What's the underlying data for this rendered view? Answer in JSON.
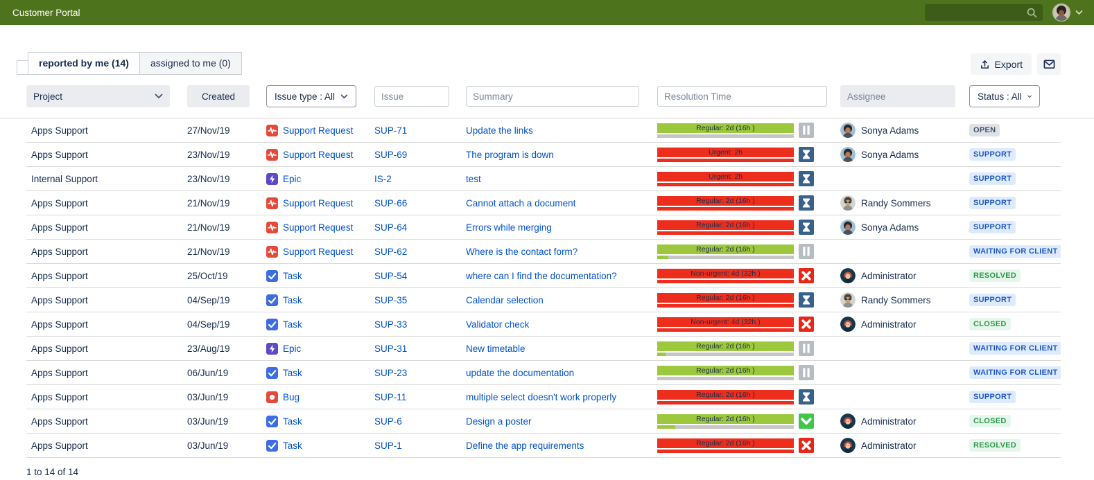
{
  "topbar": {
    "title": "Customer Portal",
    "search_placeholder": ""
  },
  "tabs": [
    {
      "label": "reported by me (14)",
      "active": true
    },
    {
      "label": "assigned to me (0)",
      "active": false
    }
  ],
  "toolbar": {
    "export_label": "Export"
  },
  "filters": {
    "project_label": "Project",
    "created_label": "Created",
    "issue_type_label": "Issue type : All",
    "issue_placeholder": "Issue",
    "summary_placeholder": "Summary",
    "resolution_placeholder": "Resolution Time",
    "assignee_placeholder": "Assignee",
    "status_label": "Status : All"
  },
  "table": {
    "rows": [
      {
        "project": "Apps Support",
        "created": "27/Nov/19",
        "issue_type": "Support Request",
        "type_icon": "support-request",
        "issue_key": "SUP-71",
        "summary": "Update the links",
        "sla": {
          "label": "Regular: 2d (16h )",
          "bar": "green",
          "sub": "gray",
          "green_pct": 0,
          "icon": "pause"
        },
        "assignee": "Sonya Adams",
        "avatar": "sonya",
        "status": "OPEN",
        "status_type": "gray"
      },
      {
        "project": "Apps Support",
        "created": "23/Nov/19",
        "issue_type": "Support Request",
        "type_icon": "support-request",
        "issue_key": "SUP-69",
        "summary": "The program is down",
        "sla": {
          "label": "Urgent: 2h",
          "bar": "red",
          "sub": "red",
          "green_pct": 0,
          "icon": "hourglass"
        },
        "assignee": "Sonya Adams",
        "avatar": "sonya",
        "status": "SUPPORT",
        "status_type": "blue"
      },
      {
        "project": "Internal Support",
        "created": "23/Nov/19",
        "issue_type": "Epic",
        "type_icon": "epic",
        "issue_key": "IS-2",
        "summary": "test",
        "sla": {
          "label": "Urgent: 2h",
          "bar": "red",
          "sub": "red",
          "green_pct": 0,
          "icon": "hourglass"
        },
        "assignee": "",
        "avatar": "",
        "status": "SUPPORT",
        "status_type": "blue"
      },
      {
        "project": "Apps Support",
        "created": "21/Nov/19",
        "issue_type": "Support Request",
        "type_icon": "support-request",
        "issue_key": "SUP-66",
        "summary": "Cannot attach a document",
        "sla": {
          "label": "Regular: 2d (16h )",
          "bar": "red",
          "sub": "red",
          "green_pct": 0,
          "icon": "hourglass"
        },
        "assignee": "Randy Sommers",
        "avatar": "randy",
        "status": "SUPPORT",
        "status_type": "blue"
      },
      {
        "project": "Apps Support",
        "created": "21/Nov/19",
        "issue_type": "Support Request",
        "type_icon": "support-request",
        "issue_key": "SUP-64",
        "summary": "Errors while merging",
        "sla": {
          "label": "Regular: 2d (16h )",
          "bar": "red",
          "sub": "red",
          "green_pct": 0,
          "icon": "hourglass"
        },
        "assignee": "Sonya Adams",
        "avatar": "sonya",
        "status": "SUPPORT",
        "status_type": "blue"
      },
      {
        "project": "Apps Support",
        "created": "21/Nov/19",
        "issue_type": "Support Request",
        "type_icon": "support-request",
        "issue_key": "SUP-62",
        "summary": "Where is the contact form?",
        "sla": {
          "label": "Regular: 2d (16h )",
          "bar": "green",
          "sub": "gray",
          "green_pct": 8,
          "icon": "pause"
        },
        "assignee": "",
        "avatar": "",
        "status": "WAITING FOR CLIENT",
        "status_type": "blue"
      },
      {
        "project": "Apps Support",
        "created": "25/Oct/19",
        "issue_type": "Task",
        "type_icon": "task",
        "issue_key": "SUP-54",
        "summary": "where can I find the documentation?",
        "sla": {
          "label": "Non-urgent: 4d (32h )",
          "bar": "red",
          "sub": "red",
          "green_pct": 0,
          "icon": "x"
        },
        "assignee": "Administrator",
        "avatar": "admin",
        "status": "RESOLVED",
        "status_type": "green"
      },
      {
        "project": "Apps Support",
        "created": "04/Sep/19",
        "issue_type": "Task",
        "type_icon": "task",
        "issue_key": "SUP-35",
        "summary": "Calendar selection",
        "sla": {
          "label": "Regular: 2d (16h )",
          "bar": "red",
          "sub": "red",
          "green_pct": 0,
          "icon": "hourglass"
        },
        "assignee": "Randy Sommers",
        "avatar": "randy",
        "status": "SUPPORT",
        "status_type": "blue"
      },
      {
        "project": "Apps Support",
        "created": "04/Sep/19",
        "issue_type": "Task",
        "type_icon": "task",
        "issue_key": "SUP-33",
        "summary": "Validator check",
        "sla": {
          "label": "Non-urgent: 4d (32h )",
          "bar": "red",
          "sub": "red",
          "green_pct": 0,
          "icon": "x"
        },
        "assignee": "Administrator",
        "avatar": "admin",
        "status": "CLOSED",
        "status_type": "green"
      },
      {
        "project": "Apps Support",
        "created": "23/Aug/19",
        "issue_type": "Epic",
        "type_icon": "epic",
        "issue_key": "SUP-31",
        "summary": "New timetable",
        "sla": {
          "label": "Regular: 2d (16h )",
          "bar": "green",
          "sub": "gray",
          "green_pct": 6,
          "icon": "pause"
        },
        "assignee": "",
        "avatar": "",
        "status": "WAITING FOR CLIENT",
        "status_type": "blue"
      },
      {
        "project": "Apps Support",
        "created": "06/Jun/19",
        "issue_type": "Task",
        "type_icon": "task",
        "issue_key": "SUP-23",
        "summary": "update the documentation",
        "sla": {
          "label": "Regular: 2d (16h )",
          "bar": "green",
          "sub": "gray",
          "green_pct": 0,
          "icon": "pause"
        },
        "assignee": "",
        "avatar": "",
        "status": "WAITING FOR CLIENT",
        "status_type": "blue"
      },
      {
        "project": "Apps Support",
        "created": "03/Jun/19",
        "issue_type": "Bug",
        "type_icon": "bug",
        "issue_key": "SUP-11",
        "summary": "multiple select doesn't work properly",
        "sla": {
          "label": "Regular: 2d (16h )",
          "bar": "red",
          "sub": "red",
          "green_pct": 0,
          "icon": "hourglass"
        },
        "assignee": "",
        "avatar": "",
        "status": "SUPPORT",
        "status_type": "blue"
      },
      {
        "project": "Apps Support",
        "created": "03/Jun/19",
        "issue_type": "Task",
        "type_icon": "task",
        "issue_key": "SUP-6",
        "summary": "Design a poster",
        "sla": {
          "label": "Regular: 2d (16h )",
          "bar": "green",
          "sub": "gray",
          "green_pct": 13,
          "icon": "check"
        },
        "assignee": "Administrator",
        "avatar": "admin",
        "status": "CLOSED",
        "status_type": "green"
      },
      {
        "project": "Apps Support",
        "created": "03/Jun/19",
        "issue_type": "Task",
        "type_icon": "task",
        "issue_key": "SUP-1",
        "summary": "Define the app requirements",
        "sla": {
          "label": "Regular: 2d (16h )",
          "bar": "red",
          "sub": "red",
          "green_pct": 0,
          "icon": "x"
        },
        "assignee": "Administrator",
        "avatar": "admin",
        "status": "RESOLVED",
        "status_type": "green"
      }
    ]
  },
  "footer": {
    "count_text": "1 to 14 of 14"
  },
  "colors": {
    "topbar": "#4e731d",
    "topbar-search": "#3c5c17",
    "text": "#172b4d",
    "link": "#0052cc",
    "bar-green": "#9bc83d",
    "bar-red": "#ee2e1d",
    "sub-gray": "#c6c6c6",
    "icon-pause": "#b7bcc2",
    "icon-hourglass": "#38628c",
    "icon-x": "#e52817",
    "icon-check": "#41c64b",
    "type-red": "#e5493a",
    "type-blue": "#3d6de4",
    "type-purple": "#5d48c8",
    "badge-gray-bg": "#dfe1e6",
    "badge-gray-text": "#42526e",
    "badge-blue-bg": "#deebff",
    "badge-blue-text": "#1d56c0",
    "badge-green-bg": "#e7f6ec",
    "badge-green-text": "#2b9a48"
  }
}
